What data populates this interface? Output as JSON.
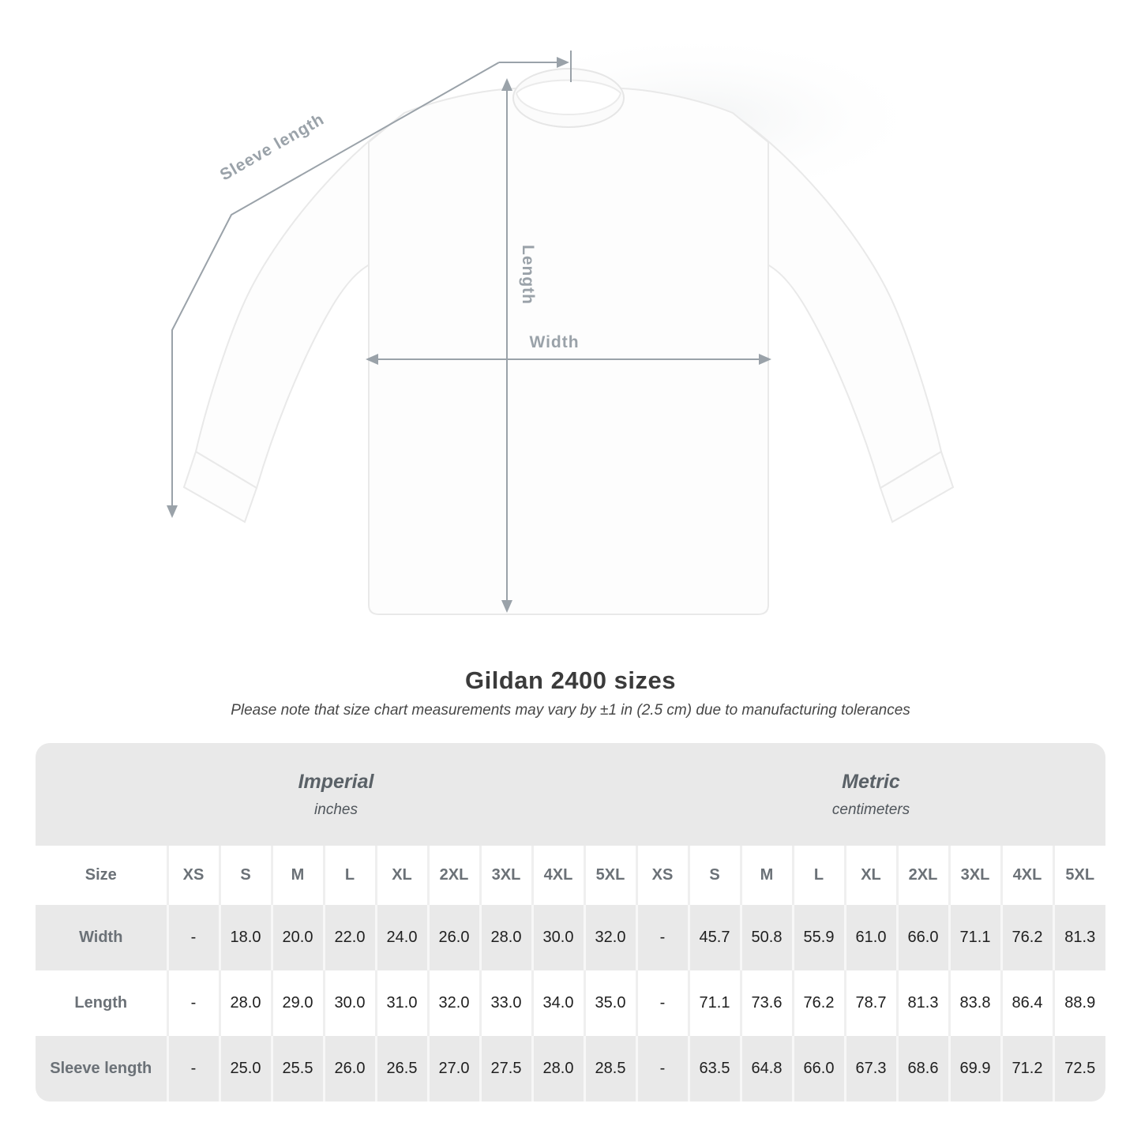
{
  "diagram": {
    "labels": {
      "sleeve_length": "Sleeve length",
      "length": "Length",
      "width": "Width"
    },
    "line_color": "#9aa2a9"
  },
  "title": "Gildan 2400 sizes",
  "subtitle": "Please note that size chart measurements may vary by ±1 in (2.5 cm) due to manufacturing tolerances",
  "chart_data": {
    "type": "table",
    "title": "Gildan 2400 sizes",
    "note": "Please note that size chart measurements may vary by ±1 in (2.5 cm) due to manufacturing tolerances",
    "unit_groups": [
      {
        "name": "Imperial",
        "unit": "inches"
      },
      {
        "name": "Metric",
        "unit": "centimeters"
      }
    ],
    "size_label": "Size",
    "sizes": [
      "XS",
      "S",
      "M",
      "L",
      "XL",
      "2XL",
      "3XL",
      "4XL",
      "5XL"
    ],
    "rows": [
      {
        "measurement": "Width",
        "imperial": [
          "-",
          "18.0",
          "20.0",
          "22.0",
          "24.0",
          "26.0",
          "28.0",
          "30.0",
          "32.0"
        ],
        "metric": [
          "-",
          "45.7",
          "50.8",
          "55.9",
          "61.0",
          "66.0",
          "71.1",
          "76.2",
          "81.3"
        ]
      },
      {
        "measurement": "Length",
        "imperial": [
          "-",
          "28.0",
          "29.0",
          "30.0",
          "31.0",
          "32.0",
          "33.0",
          "34.0",
          "35.0"
        ],
        "metric": [
          "-",
          "71.1",
          "73.6",
          "76.2",
          "78.7",
          "81.3",
          "83.8",
          "86.4",
          "88.9"
        ]
      },
      {
        "measurement": "Sleeve length",
        "imperial": [
          "-",
          "25.0",
          "25.5",
          "26.0",
          "26.5",
          "27.0",
          "27.5",
          "28.0",
          "28.5"
        ],
        "metric": [
          "-",
          "63.5",
          "64.8",
          "66.0",
          "67.3",
          "68.6",
          "69.9",
          "71.2",
          "72.5"
        ]
      }
    ]
  },
  "colors": {
    "measure_lines": "#9aa2a9",
    "band_gray": "#e9e9e9",
    "row_gray": "#e9e9e9",
    "label_gray": "#6b7177",
    "value_dark": "#1f1f1f"
  }
}
